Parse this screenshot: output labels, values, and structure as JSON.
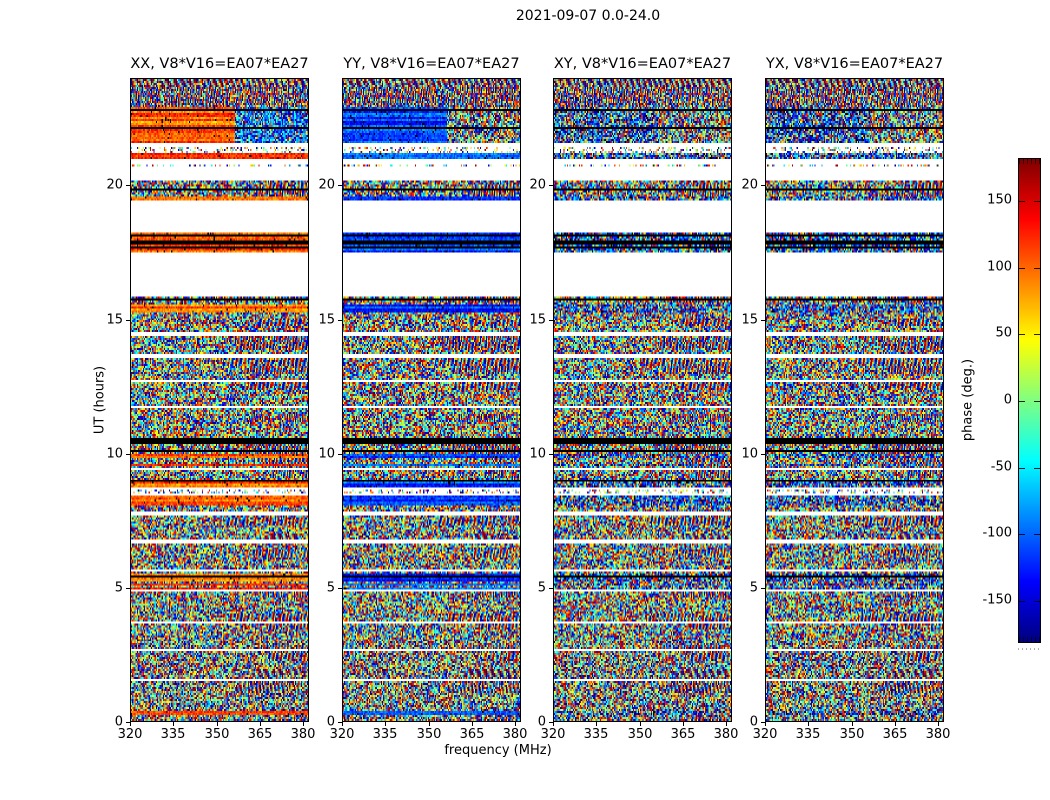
{
  "figure": {
    "suptitle": "2021-09-07 0.0-24.0",
    "xlabel": "frequency (MHz)",
    "ylabel": "UT (hours)",
    "colorbar_label": "phase (deg.)"
  },
  "axes": {
    "x_ticks": [
      "320",
      "335",
      "350",
      "365",
      "380"
    ],
    "y_ticks": [
      "0",
      "5",
      "10",
      "15",
      "20"
    ],
    "colorbar_ticks": [
      "150",
      "100",
      "50",
      "0",
      "-50",
      "-100",
      "-150"
    ]
  },
  "panels": [
    {
      "title": "XX, V8*V16=EA07*EA27",
      "tint": "orange",
      "tint_base_deg": 100
    },
    {
      "title": "YY, V8*V16=EA07*EA27",
      "tint": "blue",
      "tint_base_deg": -115
    },
    {
      "title": "XY, V8*V16=EA07*EA27",
      "tint": "noise",
      "tint_base_deg": null
    },
    {
      "title": "YX, V8*V16=EA07*EA27",
      "tint": "noise",
      "tint_base_deg": null
    }
  ],
  "chart_data": {
    "type": "heatmap",
    "title": "2021-09-07 0.0-24.0",
    "xlabel": "frequency (MHz)",
    "ylabel": "UT (hours)",
    "zlabel": "phase (deg.)",
    "colormap": "jet",
    "baseline": "V8*V16=EA07*EA27",
    "products": [
      "XX",
      "YY",
      "XY",
      "YX"
    ],
    "panel_titles": [
      "XX, V8*V16=EA07*EA27",
      "YY, V8*V16=EA07*EA27",
      "XY, V8*V16=EA07*EA27",
      "YX, V8*V16=EA07*EA27"
    ],
    "x_range": [
      320,
      382
    ],
    "y_range": [
      0,
      24
    ],
    "z_range": [
      -180,
      180
    ],
    "x_tick_values": [
      320,
      335,
      350,
      365,
      380
    ],
    "y_tick_values": [
      0,
      5,
      10,
      15,
      20
    ],
    "colorbar_tick_values": [
      150,
      100,
      50,
      0,
      -50,
      -100,
      -150
    ],
    "legend": "phase of visibilities vs frequency and time; XX band-passes show coherent orange (+100 deg) phase, YY coherent blue (-115 deg), XY/YX random noise; white rows = no data, black rows = flagged",
    "time_segments": [
      {
        "from": 24.0,
        "to": 22.96,
        "pattern": "fringe"
      },
      {
        "from": 22.96,
        "to": 21.65,
        "pattern": "band-patch"
      },
      {
        "from": 21.65,
        "to": 21.43,
        "pattern": "white"
      },
      {
        "from": 21.43,
        "to": 21.24,
        "pattern": "sparse"
      },
      {
        "from": 21.24,
        "to": 21.02,
        "pattern": "band"
      },
      {
        "from": 21.02,
        "to": 20.83,
        "pattern": "white"
      },
      {
        "from": 20.83,
        "to": 20.72,
        "pattern": "sparse"
      },
      {
        "from": 20.72,
        "to": 20.2,
        "pattern": "white"
      },
      {
        "from": 20.2,
        "to": 19.9,
        "pattern": "noise"
      },
      {
        "from": 19.9,
        "to": 19.83,
        "pattern": "black"
      },
      {
        "from": 19.83,
        "to": 19.6,
        "pattern": "noise"
      },
      {
        "from": 19.6,
        "to": 19.45,
        "pattern": "band"
      },
      {
        "from": 19.45,
        "to": 18.26,
        "pattern": "white"
      },
      {
        "from": 18.26,
        "to": 17.96,
        "pattern": "band"
      },
      {
        "from": 17.96,
        "to": 17.85,
        "pattern": "black"
      },
      {
        "from": 17.85,
        "to": 17.5,
        "pattern": "band"
      },
      {
        "from": 17.5,
        "to": 15.91,
        "pattern": "white"
      },
      {
        "from": 15.91,
        "to": 15.28,
        "pattern": "mix"
      },
      {
        "from": 15.28,
        "to": 14.53,
        "pattern": "noise"
      },
      {
        "from": 14.53,
        "to": 14.42,
        "pattern": "white"
      },
      {
        "from": 14.42,
        "to": 13.68,
        "pattern": "noise"
      },
      {
        "from": 13.68,
        "to": 13.57,
        "pattern": "white"
      },
      {
        "from": 13.57,
        "to": 12.75,
        "pattern": "noise"
      },
      {
        "from": 12.75,
        "to": 12.64,
        "pattern": "white"
      },
      {
        "from": 12.64,
        "to": 11.78,
        "pattern": "noise"
      },
      {
        "from": 11.78,
        "to": 11.67,
        "pattern": "white"
      },
      {
        "from": 11.67,
        "to": 10.58,
        "pattern": "noise"
      },
      {
        "from": 10.58,
        "to": 10.36,
        "pattern": "black"
      },
      {
        "from": 10.36,
        "to": 10.17,
        "pattern": "noise"
      },
      {
        "from": 10.17,
        "to": 10.06,
        "pattern": "black"
      },
      {
        "from": 10.06,
        "to": 9.47,
        "pattern": "mix"
      },
      {
        "from": 9.47,
        "to": 9.36,
        "pattern": "white"
      },
      {
        "from": 9.36,
        "to": 9.0,
        "pattern": "noise"
      },
      {
        "from": 9.0,
        "to": 8.73,
        "pattern": "band"
      },
      {
        "from": 8.73,
        "to": 8.62,
        "pattern": "white"
      },
      {
        "from": 8.62,
        "to": 8.51,
        "pattern": "sparse"
      },
      {
        "from": 8.51,
        "to": 8.4,
        "pattern": "white"
      },
      {
        "from": 8.4,
        "to": 8.08,
        "pattern": "band"
      },
      {
        "from": 8.08,
        "to": 7.83,
        "pattern": "noise"
      },
      {
        "from": 7.83,
        "to": 7.71,
        "pattern": "white"
      },
      {
        "from": 7.71,
        "to": 6.75,
        "pattern": "noise"
      },
      {
        "from": 6.75,
        "to": 6.63,
        "pattern": "white"
      },
      {
        "from": 6.63,
        "to": 5.7,
        "pattern": "noise"
      },
      {
        "from": 5.7,
        "to": 5.59,
        "pattern": "white"
      },
      {
        "from": 5.59,
        "to": 4.92,
        "pattern": "mix"
      },
      {
        "from": 4.92,
        "to": 4.81,
        "pattern": "white"
      },
      {
        "from": 4.81,
        "to": 3.76,
        "pattern": "noise"
      },
      {
        "from": 3.76,
        "to": 3.65,
        "pattern": "white"
      },
      {
        "from": 3.65,
        "to": 2.72,
        "pattern": "noise"
      },
      {
        "from": 2.72,
        "to": 2.61,
        "pattern": "white"
      },
      {
        "from": 2.61,
        "to": 1.6,
        "pattern": "noise"
      },
      {
        "from": 1.6,
        "to": 1.49,
        "pattern": "white"
      },
      {
        "from": 1.49,
        "to": 0.34,
        "pattern": "noise"
      },
      {
        "from": 0.34,
        "to": 0.22,
        "pattern": "band"
      },
      {
        "from": 0.22,
        "to": 0.0,
        "pattern": "noise"
      }
    ]
  }
}
